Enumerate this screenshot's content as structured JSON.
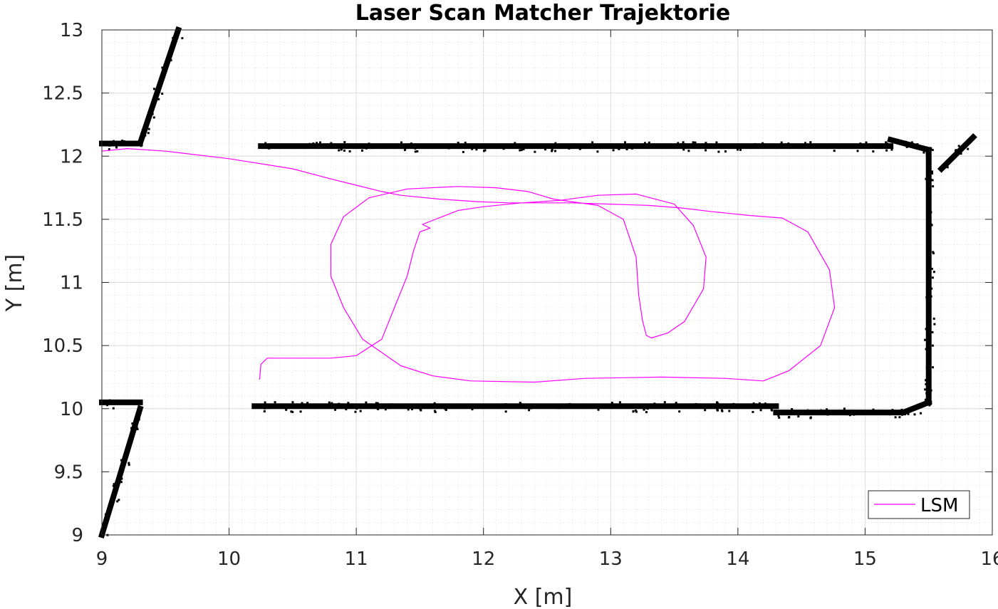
{
  "chart_data": {
    "type": "line",
    "title": "Laser Scan Matcher Trajektorie",
    "xlabel": "X [m]",
    "ylabel": "Y [m]",
    "xlim": [
      9,
      16
    ],
    "ylim": [
      9,
      13
    ],
    "x_ticks": [
      "9",
      "10",
      "11",
      "12",
      "13",
      "14",
      "15",
      "16"
    ],
    "y_ticks": [
      "9",
      "9.5",
      "10",
      "10.5",
      "11",
      "11.5",
      "12",
      "12.5",
      "13"
    ],
    "grid": true,
    "legend": {
      "position": "bottom-right"
    },
    "series": [
      {
        "name": "LSM",
        "color": "#ff00ff",
        "x": [
          9.0,
          9.2,
          9.5,
          10.0,
          10.5,
          10.8,
          11.0,
          11.2,
          11.35,
          11.65,
          11.95,
          12.2,
          12.45,
          12.7,
          13.0,
          13.3,
          13.55,
          13.8,
          14.1,
          14.35,
          14.55,
          14.72,
          14.76,
          14.65,
          14.4,
          14.2,
          13.9,
          13.4,
          12.8,
          12.4,
          11.9,
          11.6,
          11.35,
          11.05,
          10.9,
          10.8,
          10.8,
          10.9,
          11.1,
          11.4,
          11.8,
          12.1,
          12.35,
          12.55,
          12.9,
          13.1,
          13.2,
          13.22,
          13.25,
          13.28,
          13.32,
          13.45,
          13.58,
          13.73,
          13.75,
          13.65,
          13.5,
          13.2,
          12.9,
          12.6,
          12.3,
          12.0,
          11.8,
          11.7,
          11.52,
          11.58,
          11.5,
          11.45,
          11.4,
          11.3,
          11.2,
          11.0,
          10.8,
          10.5,
          10.3,
          10.25,
          10.24
        ],
        "y": [
          12.04,
          12.06,
          12.04,
          11.98,
          11.9,
          11.82,
          11.77,
          11.72,
          11.69,
          11.66,
          11.64,
          11.63,
          11.63,
          11.63,
          11.62,
          11.61,
          11.59,
          11.56,
          11.53,
          11.51,
          11.4,
          11.1,
          10.8,
          10.5,
          10.3,
          10.22,
          10.24,
          10.25,
          10.24,
          10.21,
          10.22,
          10.26,
          10.34,
          10.55,
          10.8,
          11.05,
          11.3,
          11.52,
          11.67,
          11.74,
          11.76,
          11.75,
          11.72,
          11.66,
          11.61,
          11.5,
          11.2,
          10.9,
          10.7,
          10.58,
          10.56,
          10.6,
          10.69,
          10.95,
          11.2,
          11.45,
          11.62,
          11.7,
          11.69,
          11.65,
          11.63,
          11.6,
          11.57,
          11.53,
          11.46,
          11.43,
          11.4,
          11.25,
          11.05,
          10.8,
          10.55,
          10.42,
          10.4,
          10.4,
          10.4,
          10.35,
          10.23
        ]
      }
    ],
    "occupancy_map": {
      "color": "#000000",
      "walls": [
        {
          "from": [
            9.0,
            12.1
          ],
          "to": [
            9.3,
            12.1
          ]
        },
        {
          "from": [
            9.3,
            12.1
          ],
          "to": [
            9.6,
            13.0
          ]
        },
        {
          "from": [
            10.25,
            12.08
          ],
          "to": [
            15.2,
            12.08
          ]
        },
        {
          "from": [
            15.2,
            12.13
          ],
          "to": [
            15.5,
            12.05
          ]
        },
        {
          "from": [
            15.5,
            12.05
          ],
          "to": [
            15.5,
            10.05
          ]
        },
        {
          "from": [
            15.5,
            10.05
          ],
          "to": [
            15.3,
            9.97
          ]
        },
        {
          "from": [
            15.3,
            9.97
          ],
          "to": [
            14.3,
            9.97
          ]
        },
        {
          "from": [
            14.3,
            10.02
          ],
          "to": [
            10.2,
            10.02
          ]
        },
        {
          "from": [
            9.0,
            10.05
          ],
          "to": [
            9.3,
            10.05
          ]
        },
        {
          "from": [
            9.3,
            10.0
          ],
          "to": [
            9.0,
            9.0
          ]
        },
        {
          "from": [
            15.6,
            11.9
          ],
          "to": [
            15.85,
            12.15
          ]
        }
      ]
    }
  }
}
